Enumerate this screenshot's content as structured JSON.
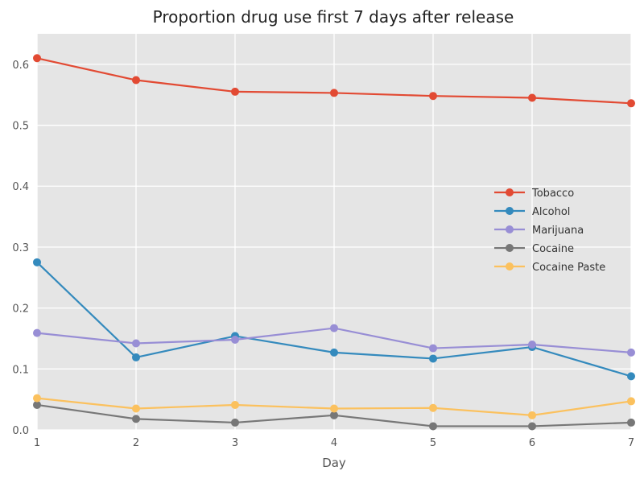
{
  "chart_data": {
    "type": "line",
    "title": "Proportion drug use first 7 days after release",
    "xlabel": "Day",
    "ylabel": "",
    "x": [
      1,
      2,
      3,
      4,
      5,
      6,
      7
    ],
    "xlim": [
      1,
      7
    ],
    "ylim": [
      0,
      0.65
    ],
    "xticks": [
      "1",
      "2",
      "3",
      "4",
      "5",
      "6",
      "7"
    ],
    "yticks": [
      "0.0",
      "0.1",
      "0.2",
      "0.3",
      "0.4",
      "0.5",
      "0.6"
    ],
    "grid": true,
    "legend": "center-right",
    "series": [
      {
        "name": "Tobacco",
        "color": "#E24A33",
        "values": [
          0.61,
          0.574,
          0.555,
          0.553,
          0.548,
          0.545,
          0.536
        ]
      },
      {
        "name": "Alcohol",
        "color": "#348ABD",
        "values": [
          0.275,
          0.119,
          0.154,
          0.127,
          0.117,
          0.136,
          0.088
        ]
      },
      {
        "name": "Marijuana",
        "color": "#988ED5",
        "values": [
          0.159,
          0.142,
          0.148,
          0.167,
          0.134,
          0.14,
          0.127
        ]
      },
      {
        "name": "Cocaine",
        "color": "#777777",
        "values": [
          0.041,
          0.018,
          0.012,
          0.024,
          0.006,
          0.006,
          0.012
        ]
      },
      {
        "name": "Cocaine Paste",
        "color": "#FBC15E",
        "values": [
          0.052,
          0.035,
          0.041,
          0.035,
          0.036,
          0.024,
          0.047
        ]
      }
    ]
  }
}
